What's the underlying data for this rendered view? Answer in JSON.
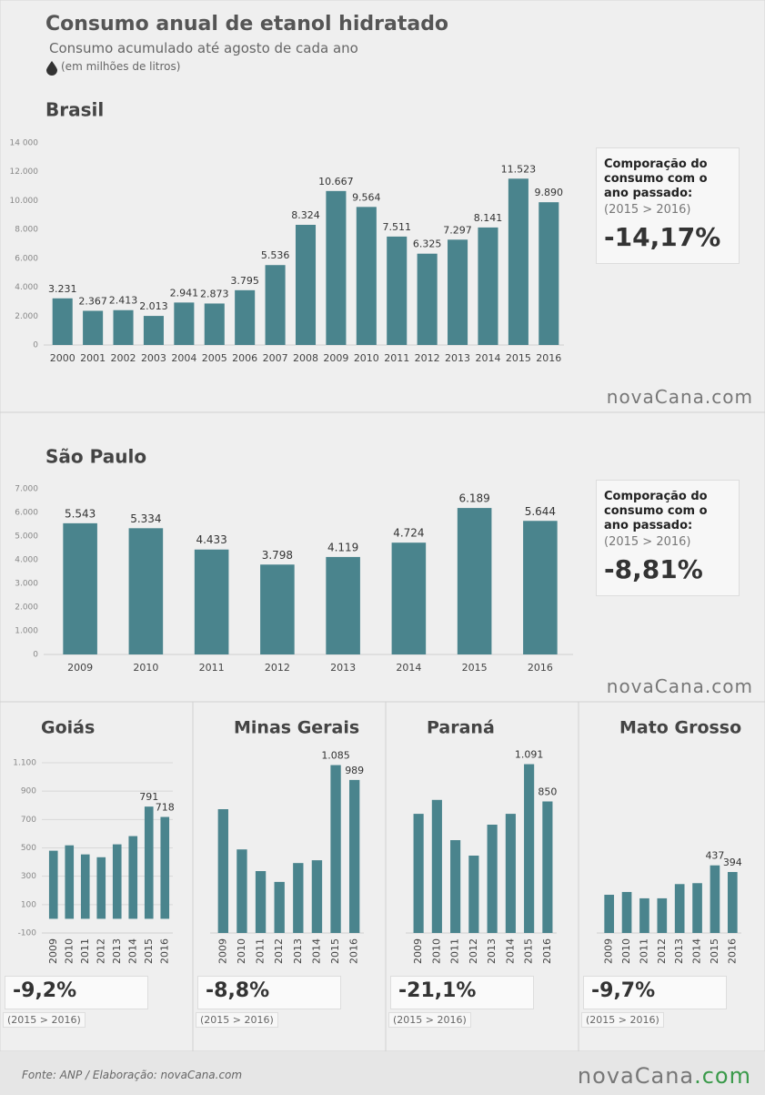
{
  "header": {
    "title": "Consumo anual de etanol hidratado",
    "subtitle": "Consumo acumulado até agosto de cada ano",
    "unit": "(em milhões de litros)"
  },
  "footer": {
    "source": "Fonte: ANP  / Elaboração: novaCana.com"
  },
  "logo": {
    "name": "novaCana",
    "domain": ".com"
  },
  "chart_data": [
    {
      "type": "bar",
      "title": "Brasil",
      "color": "#4a848d",
      "categories": [
        "2000",
        "2001",
        "2002",
        "2003",
        "2004",
        "2005",
        "2006",
        "2007",
        "2008",
        "2009",
        "2010",
        "2011",
        "2012",
        "2013",
        "2014",
        "2015",
        "2016"
      ],
      "values": [
        3231,
        2367,
        2413,
        2013,
        2941,
        2873,
        3795,
        5536,
        8324,
        10667,
        9564,
        7511,
        6325,
        7297,
        8141,
        11523,
        9890
      ],
      "value_labels": [
        "3.231",
        "2.367",
        "2.413",
        "2.013",
        "2.941",
        "2.873",
        "3.795",
        "5.536",
        "8.324",
        "10.667",
        "9.564",
        "7.511",
        "6.325",
        "7.297",
        "8.141",
        "11.523",
        "9.890"
      ],
      "ylim": [
        0,
        14000
      ],
      "yticks": [
        0,
        {
          "value": 2000,
          "label": "2.000"
        },
        {
          "value": 4000,
          "label": "4.000"
        },
        {
          "value": 6000,
          "label": "6.000"
        },
        {
          "value": 8000,
          "label": "8.000"
        },
        {
          "value": 10000,
          "label": "10.000"
        },
        {
          "value": 12000,
          "label": "12.000"
        },
        {
          "value": 14000,
          "label": "14 000"
        }
      ],
      "grid": false,
      "comparison": {
        "label": "Comporação do consumo com o ano passado:",
        "period": "(2015 > 2016)",
        "change": "-14,17%"
      }
    },
    {
      "type": "bar",
      "title": "São Paulo",
      "color": "#4a848d",
      "categories": [
        "2009",
        "2010",
        "2011",
        "2012",
        "2013",
        "2014",
        "2015",
        "2016"
      ],
      "values": [
        5543,
        5334,
        4433,
        3798,
        4119,
        4724,
        6189,
        5644
      ],
      "value_labels": [
        "5.543",
        "5.334",
        "4.433",
        "3.798",
        "4.119",
        "4.724",
        "6.189",
        "5.644"
      ],
      "ylim": [
        0,
        7000
      ],
      "yticks": [
        0,
        {
          "value": 1000,
          "label": "1.000"
        },
        {
          "value": 2000,
          "label": "2.000"
        },
        {
          "value": 3000,
          "label": "3.000"
        },
        {
          "value": 4000,
          "label": "4.000"
        },
        {
          "value": 5000,
          "label": "5.000"
        },
        {
          "value": 6000,
          "label": "6.000"
        },
        {
          "value": 7000,
          "label": "7.000"
        }
      ],
      "grid": false,
      "comparison": {
        "label": "Comporação do consumo com o ano passado:",
        "period": "(2015 > 2016)",
        "change": "-8,81%"
      }
    },
    {
      "type": "bar",
      "title": "Goiás",
      "color": "#4a848d",
      "categories": [
        "2009",
        "2010",
        "2011",
        "2012",
        "2013",
        "2014",
        "2015",
        "2016"
      ],
      "values": [
        480,
        518,
        454,
        434,
        525,
        583,
        791,
        718
      ],
      "value_labels": [
        null,
        null,
        null,
        null,
        null,
        null,
        "791",
        "718"
      ],
      "ylim": [
        -100,
        1100
      ],
      "yticks": [
        -100,
        100,
        300,
        500,
        700,
        900,
        {
          "value": 1100,
          "label": "1.100"
        }
      ],
      "grid": true,
      "comparison": {
        "period": "(2015 > 2016)",
        "change": "-9,2%"
      }
    },
    {
      "type": "bar",
      "title": "Minas Gerais",
      "color": "#4a848d",
      "categories": [
        "2009",
        "2010",
        "2011",
        "2012",
        "2013",
        "2014",
        "2015",
        "2016"
      ],
      "values": [
        800,
        540,
        400,
        330,
        452,
        470,
        1085,
        989
      ],
      "value_labels": [
        null,
        null,
        null,
        null,
        null,
        null,
        "1.085",
        "989"
      ],
      "ylim": [
        0,
        1100
      ],
      "comparison": {
        "period": "(2015 > 2016)",
        "change": "-8,8%"
      }
    },
    {
      "type": "bar",
      "title": "Paraná",
      "color": "#4a848d",
      "categories": [
        "2009",
        "2010",
        "2011",
        "2012",
        "2013",
        "2014",
        "2015",
        "2016"
      ],
      "values": [
        770,
        860,
        600,
        500,
        700,
        770,
        1091,
        850
      ],
      "value_labels": [
        null,
        null,
        null,
        null,
        null,
        null,
        "1.091",
        "850"
      ],
      "ylim": [
        0,
        1100
      ],
      "comparison": {
        "period": "(2015 > 2016)",
        "change": "-21,1%"
      }
    },
    {
      "type": "bar",
      "title": "Mato Grosso",
      "color": "#4a848d",
      "categories": [
        "2009",
        "2010",
        "2011",
        "2012",
        "2013",
        "2014",
        "2015",
        "2016"
      ],
      "values": [
        247,
        265,
        224,
        224,
        316,
        322,
        437,
        394
      ],
      "value_labels": [
        null,
        null,
        null,
        null,
        null,
        null,
        "437",
        "394"
      ],
      "ylim": [
        0,
        1100
      ],
      "comparison": {
        "period": "(2015 > 2016)",
        "change": "-9,7%"
      }
    }
  ]
}
